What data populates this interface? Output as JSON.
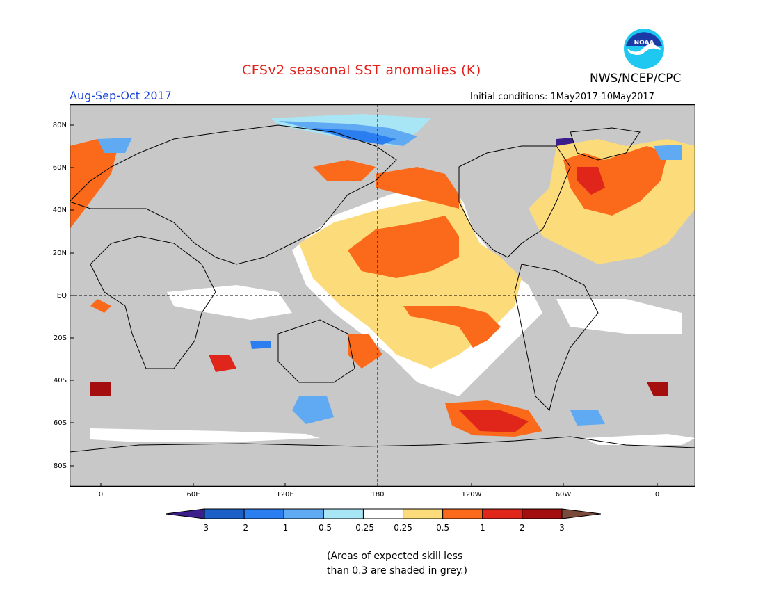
{
  "header": {
    "title": "CFSv2 seasonal SST anomalies (K)",
    "agency": "NWS/NCEP/CPC",
    "logo_text": "NOAA",
    "season": "Aug-Sep-Oct 2017",
    "initial_conditions": "Initial conditions: 1May2017-10May2017"
  },
  "colors": {
    "title": "#e3201a",
    "season": "#1b47d8",
    "land": "#c8c8c8",
    "grey_skill": "#c8c8c8"
  },
  "map": {
    "lat_labels": [
      "80N",
      "60N",
      "40N",
      "20N",
      "EQ",
      "20S",
      "40S",
      "60S",
      "80S"
    ],
    "lon_labels": [
      "0",
      "60E",
      "120E",
      "180",
      "120W",
      "60W",
      "0"
    ]
  },
  "legend": {
    "labels": [
      "-3",
      "-2",
      "-1",
      "-0.5",
      "-0.25",
      "0.25",
      "0.5",
      "1",
      "2",
      "3"
    ],
    "colors": [
      "#3b1e8c",
      "#1c5fc8",
      "#2b7ef0",
      "#5faaf2",
      "#a8e6f5",
      "#ffffff",
      "#fcdc7a",
      "#fb6a1a",
      "#e0251a",
      "#a50e0e",
      "#7a4a3a"
    ]
  },
  "note": {
    "line1": "(Areas of expected skill less",
    "line2": "than 0.3 are shaded in grey.)"
  }
}
